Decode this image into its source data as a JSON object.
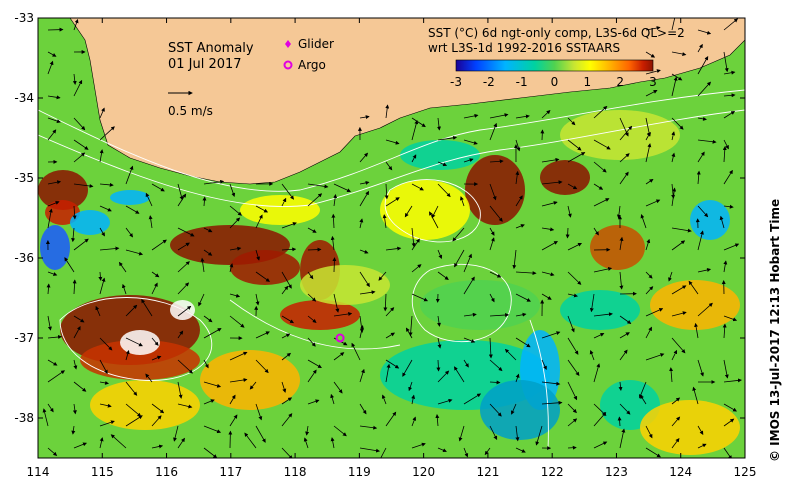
{
  "map": {
    "title": "SST Anomaly",
    "date": "01 Jul 2017",
    "scale_label": "0.5 m/s",
    "legend": {
      "glider_label": "Glider",
      "argo_label": "Argo",
      "glider_color": "#e000e0",
      "argo_color": "#e000e0"
    },
    "product_line1": "SST (°C) 6d ngt-only comp, L3S-6d QL>=2",
    "product_line2": "wrt L3S-1d 1992-2016 SSTAARS",
    "colorbar": {
      "ticks": [
        "-3",
        "-2",
        "-1",
        "0",
        "1",
        "2",
        "3"
      ],
      "range": [
        -3,
        3
      ],
      "colors": [
        "#1a0096",
        "#0040ff",
        "#00b4ff",
        "#00d2a0",
        "#50d250",
        "#c8e632",
        "#ffff00",
        "#ffb400",
        "#ff6400",
        "#c81e00",
        "#8c1400"
      ]
    },
    "x_ticks": [
      "114",
      "115",
      "116",
      "117",
      "118",
      "119",
      "120",
      "121",
      "122",
      "123",
      "124",
      "125"
    ],
    "y_ticks": [
      "-33",
      "-34",
      "-35",
      "-36",
      "-37",
      "-38"
    ],
    "lon_range": [
      114,
      125
    ],
    "lat_range": [
      -38.5,
      -33
    ],
    "land_color": "#f5c896",
    "argo_position": {
      "lon": 118.7,
      "lat": -37.0
    },
    "credit": "©  IMOS 13-Jul-2017 12:13 Hobart Time"
  }
}
